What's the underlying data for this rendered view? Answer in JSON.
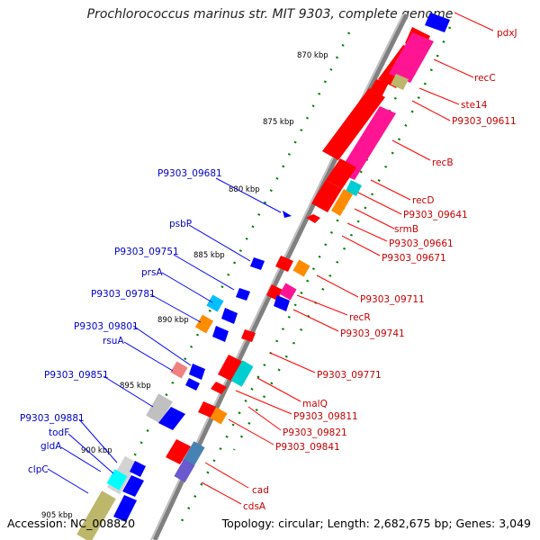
{
  "title": "Prochlorococcus marinus str. MIT 9303, complete genome",
  "footer": {
    "accession": "Accession: NC_008820",
    "summary": "Topology: circular; Length: 2,682,675 bp; Genes: 3,049"
  },
  "colors": {
    "forward": "#0000ff",
    "reverse": "#ff0000",
    "backbone": "#808080",
    "ticks": "#008000"
  },
  "ticks": [
    "870 kbp",
    "875 kbp",
    "880 kbp",
    "885 kbp",
    "890 kbp",
    "895 kbp",
    "900 kbp",
    "905 kbp"
  ],
  "left_labels": [
    "P9303_09681",
    "psbP",
    "P9303_09751",
    "prsA",
    "P9303_09781",
    "P9303_09801",
    "rsuA",
    "P9303_09851",
    "P9303_09881",
    "todF",
    "gldA",
    "clpC"
  ],
  "right_labels": [
    "pdxJ",
    "recC",
    "ste14",
    "P9303_09611",
    "recB",
    "recD",
    "P9303_09641",
    "srmB",
    "P9303_09661",
    "P9303_09671",
    "P9303_09711",
    "recR",
    "P9303_09741",
    "P9303_09771",
    "malQ",
    "P9303_09811",
    "P9303_09821",
    "P9303_09841",
    "cad",
    "cdsA"
  ]
}
